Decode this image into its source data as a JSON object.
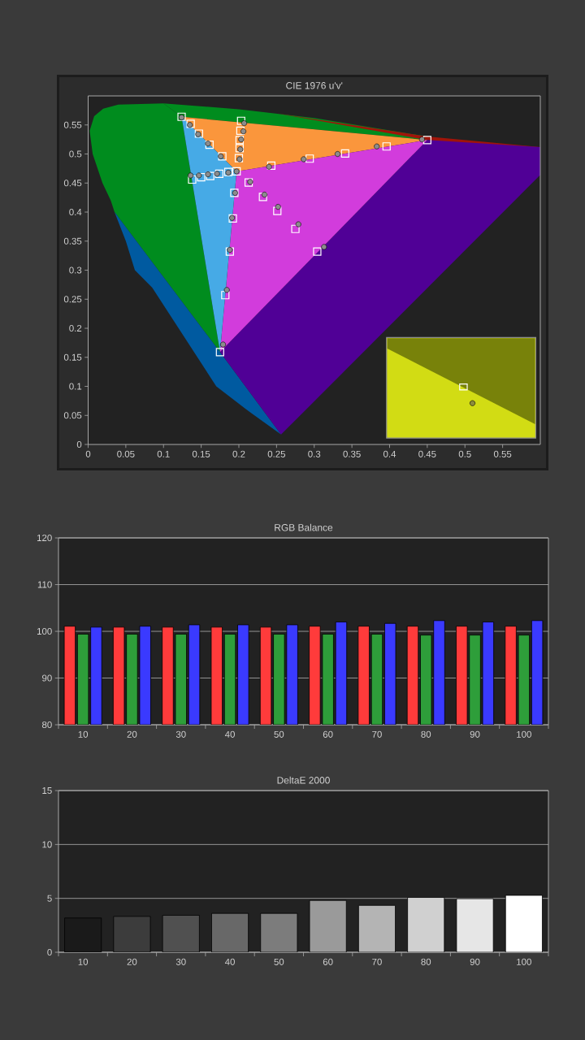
{
  "chart_data": [
    {
      "type": "scatter",
      "title": "CIE 1976 u'v'",
      "xlim": [
        0,
        0.6
      ],
      "ylim": [
        0,
        0.6
      ],
      "xticks": [
        0,
        0.05,
        0.1,
        0.15,
        0.2,
        0.25,
        0.3,
        0.35,
        0.4,
        0.45,
        0.5,
        0.55
      ],
      "yticks": [
        0,
        0.05,
        0.1,
        0.15,
        0.2,
        0.25,
        0.3,
        0.35,
        0.4,
        0.45,
        0.5,
        0.55
      ],
      "series": [
        {
          "color": "#ffffff",
          "marker": "square",
          "x": [
            0.124,
            0.136,
            0.147,
            0.161,
            0.178,
            0.203,
            0.202,
            0.201,
            0.201,
            0.2,
            0.45,
            0.396,
            0.341,
            0.294,
            0.243,
            0.138,
            0.15,
            0.162,
            0.174,
            0.186,
            0.304,
            0.275,
            0.251,
            0.232,
            0.213,
            0.175,
            0.182,
            0.188,
            0.192,
            0.194,
            0.197
          ],
          "values": [
            0.564,
            0.552,
            0.535,
            0.516,
            0.496,
            0.557,
            0.54,
            0.524,
            0.51,
            0.493,
            0.524,
            0.513,
            0.501,
            0.492,
            0.48,
            0.456,
            0.46,
            0.462,
            0.466,
            0.469,
            0.332,
            0.371,
            0.402,
            0.426,
            0.451,
            0.159,
            0.257,
            0.332,
            0.389,
            0.433,
            0.47
          ]
        },
        {
          "color": "#8c8c8c",
          "marker": "circle",
          "x": [
            0.124,
            0.135,
            0.146,
            0.159,
            0.176,
            0.207,
            0.206,
            0.203,
            0.202,
            0.201,
            0.443,
            0.383,
            0.331,
            0.286,
            0.24,
            0.136,
            0.147,
            0.159,
            0.171,
            0.186,
            0.313,
            0.279,
            0.252,
            0.234,
            0.215,
            0.179,
            0.184,
            0.188,
            0.191,
            0.195,
            0.197
          ],
          "values": [
            0.563,
            0.55,
            0.534,
            0.518,
            0.496,
            0.553,
            0.539,
            0.525,
            0.508,
            0.491,
            0.525,
            0.513,
            0.5,
            0.491,
            0.478,
            0.463,
            0.463,
            0.465,
            0.466,
            0.468,
            0.34,
            0.379,
            0.409,
            0.43,
            0.452,
            0.172,
            0.266,
            0.335,
            0.39,
            0.433,
            0.47
          ]
        }
      ]
    },
    {
      "type": "bar",
      "title": "RGB Balance",
      "categories": [
        "10",
        "20",
        "30",
        "40",
        "50",
        "60",
        "70",
        "80",
        "90",
        "100"
      ],
      "ylim": [
        80,
        120
      ],
      "yticks": [
        80,
        90,
        100,
        110,
        120
      ],
      "grid": "y",
      "series": [
        {
          "color": "#ff3b3b",
          "values": [
            101.1,
            100.9,
            100.9,
            100.9,
            100.9,
            101.1,
            101.1,
            101.1,
            101.1,
            101.1
          ]
        },
        {
          "color": "#2e9e3a",
          "values": [
            99.4,
            99.4,
            99.4,
            99.4,
            99.4,
            99.4,
            99.4,
            99.2,
            99.2,
            99.2
          ]
        },
        {
          "color": "#3a3aff",
          "values": [
            100.9,
            101.1,
            101.4,
            101.4,
            101.4,
            102.0,
            101.7,
            102.3,
            102.0,
            102.3
          ]
        }
      ]
    },
    {
      "type": "bar",
      "title": "DeltaE 2000",
      "categories": [
        "10",
        "20",
        "30",
        "40",
        "50",
        "60",
        "70",
        "80",
        "90",
        "100"
      ],
      "ylim": [
        0,
        15
      ],
      "yticks": [
        0,
        5,
        10,
        15
      ],
      "grid": "y",
      "values": [
        3.18,
        3.33,
        3.43,
        3.61,
        3.61,
        4.81,
        4.35,
        5.09,
        4.97,
        5.28
      ],
      "colors": [
        "#1a1a1a",
        "#3c3c3c",
        "#505050",
        "#686868",
        "#7c7c7c",
        "#9a9a9a",
        "#b4b4b4",
        "#d0d0d0",
        "#e6e6e6",
        "#ffffff"
      ]
    }
  ]
}
